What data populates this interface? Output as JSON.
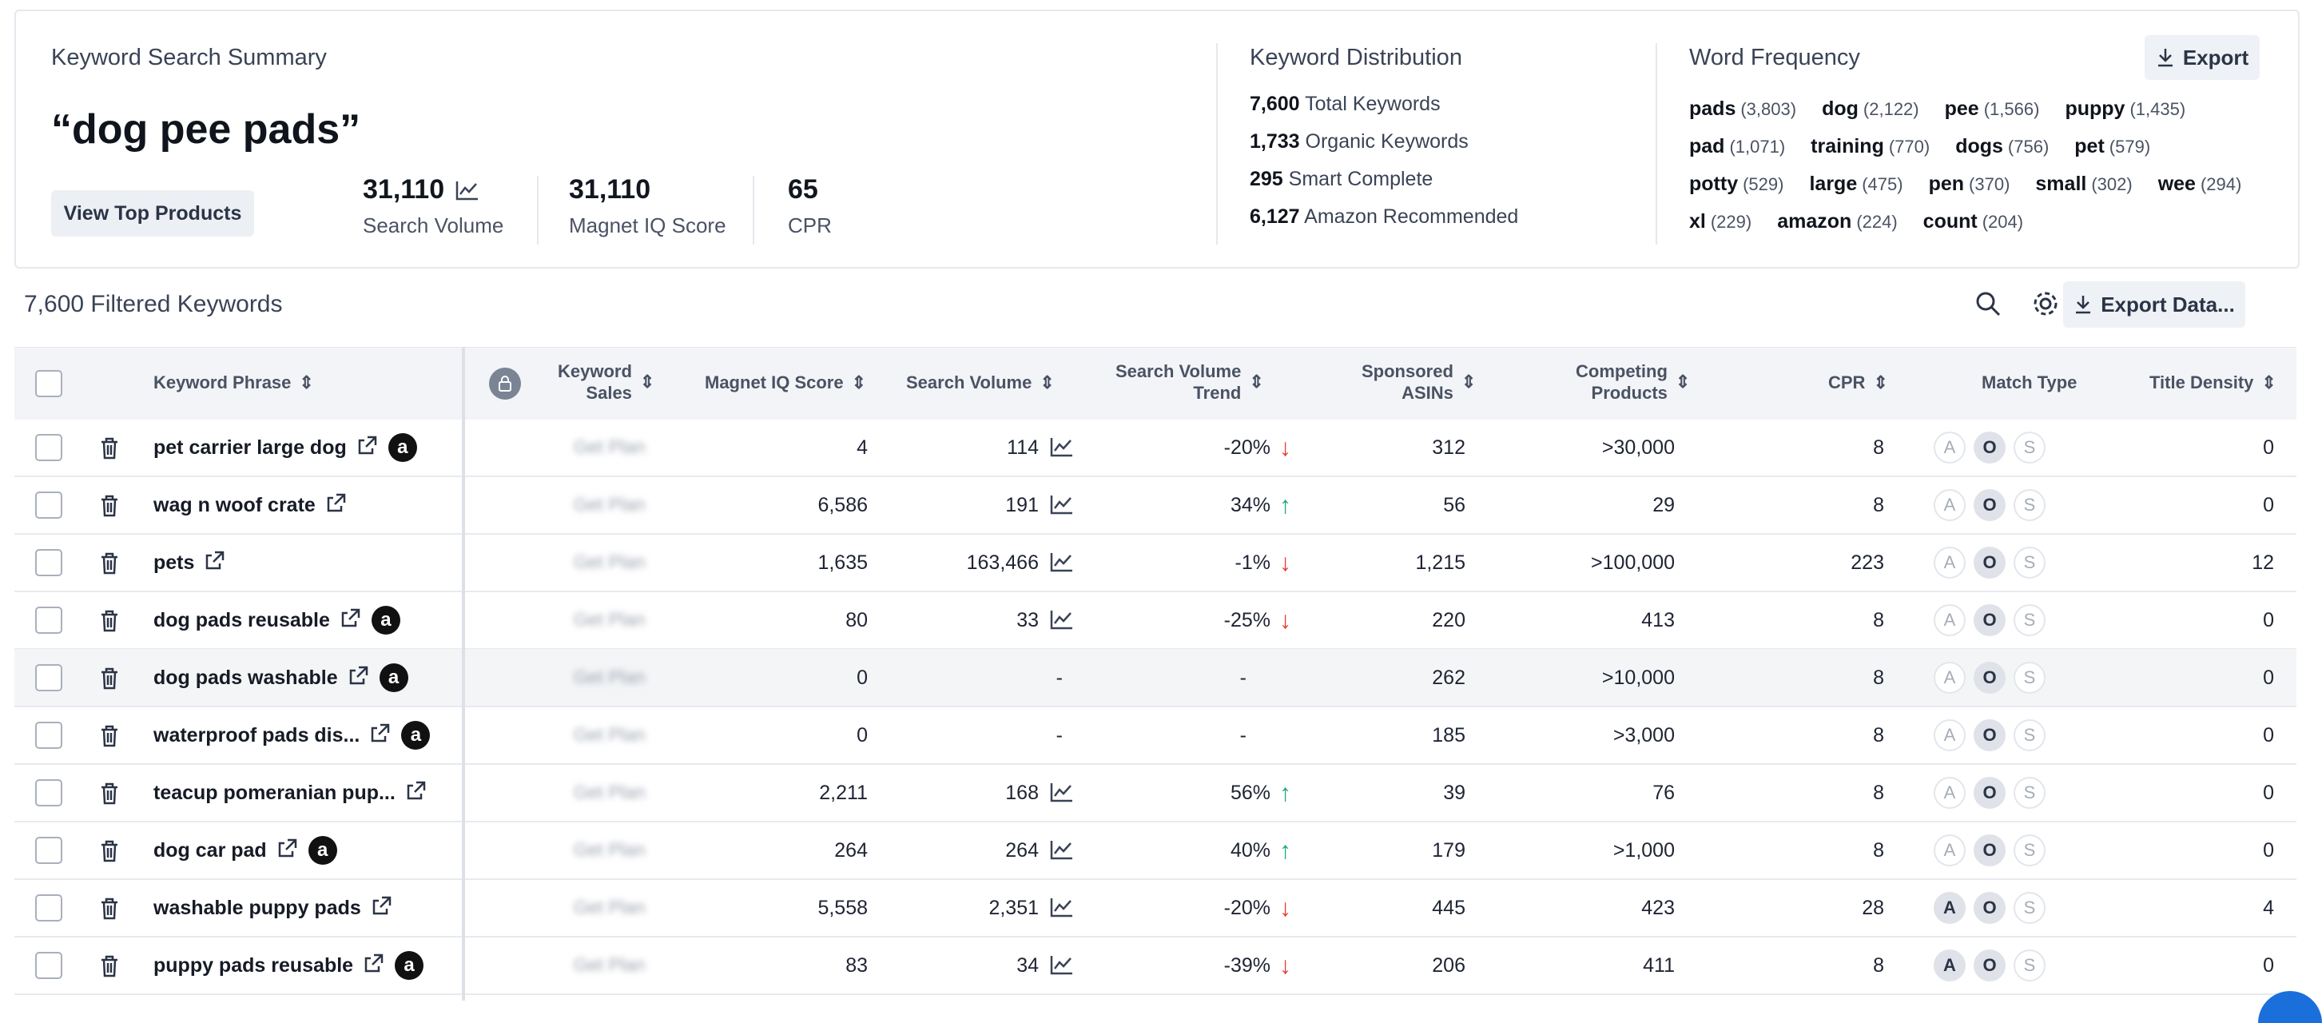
{
  "summary": {
    "title": "Keyword Search Summary",
    "keyword": "“dog pee pads”",
    "view_top_products": "View Top Products",
    "metrics": [
      {
        "value": "31,110",
        "label": "Search Volume"
      },
      {
        "value": "31,110",
        "label": "Magnet IQ Score"
      },
      {
        "value": "65",
        "label": "CPR"
      }
    ]
  },
  "distribution": {
    "title": "Keyword Distribution",
    "rows": [
      {
        "value": "7,600",
        "label": "Total Keywords"
      },
      {
        "value": "1,733",
        "label": "Organic Keywords"
      },
      {
        "value": "295",
        "label": "Smart Complete"
      },
      {
        "value": "6,127",
        "label": "Amazon Recommended"
      }
    ]
  },
  "word_frequency": {
    "title": "Word Frequency",
    "export_label": "Export",
    "lines": [
      [
        {
          "w": "pads",
          "c": "(3,803)"
        },
        {
          "w": "dog",
          "c": "(2,122)"
        },
        {
          "w": "pee",
          "c": "(1,566)"
        },
        {
          "w": "puppy",
          "c": "(1,435)"
        }
      ],
      [
        {
          "w": "pad",
          "c": "(1,071)"
        },
        {
          "w": "training",
          "c": "(770)"
        },
        {
          "w": "dogs",
          "c": "(756)"
        },
        {
          "w": "pet",
          "c": "(579)"
        }
      ],
      [
        {
          "w": "potty",
          "c": "(529)"
        },
        {
          "w": "large",
          "c": "(475)"
        },
        {
          "w": "pen",
          "c": "(370)"
        },
        {
          "w": "small",
          "c": "(302)"
        },
        {
          "w": "wee",
          "c": "(294)"
        }
      ],
      [
        {
          "w": "xl",
          "c": "(229)"
        },
        {
          "w": "amazon",
          "c": "(224)"
        },
        {
          "w": "count",
          "c": "(204)"
        }
      ]
    ]
  },
  "table": {
    "filtered_label": "7,600 Filtered Keywords",
    "export_data_label": "Export Data...",
    "headers": {
      "keyword_phrase": "Keyword Phrase",
      "keyword_sales_1": "Keyword",
      "keyword_sales_2": "Sales",
      "magnet_iq": "Magnet IQ Score",
      "search_volume": "Search Volume",
      "trend_1": "Search Volume",
      "trend_2": "Trend",
      "sponsored_1": "Sponsored",
      "sponsored_2": "ASINs",
      "competing_1": "Competing",
      "competing_2": "Products",
      "cpr": "CPR",
      "match_type": "Match Type",
      "title_density": "Title Density"
    },
    "blurred_text": "Get Plan",
    "match_letters": [
      "A",
      "O",
      "S"
    ],
    "rows": [
      {
        "kw": "pet carrier large dog",
        "amz": true,
        "miq": "4",
        "sv": "114",
        "chart": true,
        "trend": "-20%",
        "dir": "down",
        "asins": "312",
        "comp": ">30,000",
        "cpr": "8",
        "mt": [
          false,
          true,
          false
        ],
        "td": "0"
      },
      {
        "kw": "wag n woof crate",
        "amz": false,
        "miq": "6,586",
        "sv": "191",
        "chart": true,
        "trend": "34%",
        "dir": "up",
        "asins": "56",
        "comp": "29",
        "cpr": "8",
        "mt": [
          false,
          true,
          false
        ],
        "td": "0"
      },
      {
        "kw": "pets",
        "amz": false,
        "miq": "1,635",
        "sv": "163,466",
        "chart": true,
        "trend": "-1%",
        "dir": "down",
        "asins": "1,215",
        "comp": ">100,000",
        "cpr": "223",
        "mt": [
          false,
          true,
          false
        ],
        "td": "12"
      },
      {
        "kw": "dog pads reusable",
        "amz": true,
        "miq": "80",
        "sv": "33",
        "chart": true,
        "trend": "-25%",
        "dir": "down",
        "asins": "220",
        "comp": "413",
        "cpr": "8",
        "mt": [
          false,
          true,
          false
        ],
        "td": "0"
      },
      {
        "kw": "dog pads washable",
        "amz": true,
        "miq": "0",
        "sv": "-",
        "chart": false,
        "trend": "-",
        "dir": "none",
        "asins": "262",
        "comp": ">10,000",
        "cpr": "8",
        "mt": [
          false,
          true,
          false
        ],
        "td": "0"
      },
      {
        "kw": "waterproof pads dis...",
        "amz": true,
        "miq": "0",
        "sv": "-",
        "chart": false,
        "trend": "-",
        "dir": "none",
        "asins": "185",
        "comp": ">3,000",
        "cpr": "8",
        "mt": [
          false,
          true,
          false
        ],
        "td": "0"
      },
      {
        "kw": "teacup pomeranian pup...",
        "amz": false,
        "miq": "2,211",
        "sv": "168",
        "chart": true,
        "trend": "56%",
        "dir": "up",
        "asins": "39",
        "comp": "76",
        "cpr": "8",
        "mt": [
          false,
          true,
          false
        ],
        "td": "0"
      },
      {
        "kw": "dog car pad",
        "amz": true,
        "miq": "264",
        "sv": "264",
        "chart": true,
        "trend": "40%",
        "dir": "up",
        "asins": "179",
        "comp": ">1,000",
        "cpr": "8",
        "mt": [
          false,
          true,
          false
        ],
        "td": "0"
      },
      {
        "kw": "washable puppy pads",
        "amz": false,
        "miq": "5,558",
        "sv": "2,351",
        "chart": true,
        "trend": "-20%",
        "dir": "down",
        "asins": "445",
        "comp": "423",
        "cpr": "28",
        "mt": [
          true,
          true,
          false
        ],
        "td": "4"
      },
      {
        "kw": "puppy pads reusable",
        "amz": true,
        "miq": "83",
        "sv": "34",
        "chart": true,
        "trend": "-39%",
        "dir": "down",
        "asins": "206",
        "comp": "411",
        "cpr": "8",
        "mt": [
          true,
          true,
          false
        ],
        "td": "0"
      }
    ]
  },
  "colors": {
    "up": "#19a974",
    "down": "#e5392f",
    "accent": "#1a6fdb"
  }
}
